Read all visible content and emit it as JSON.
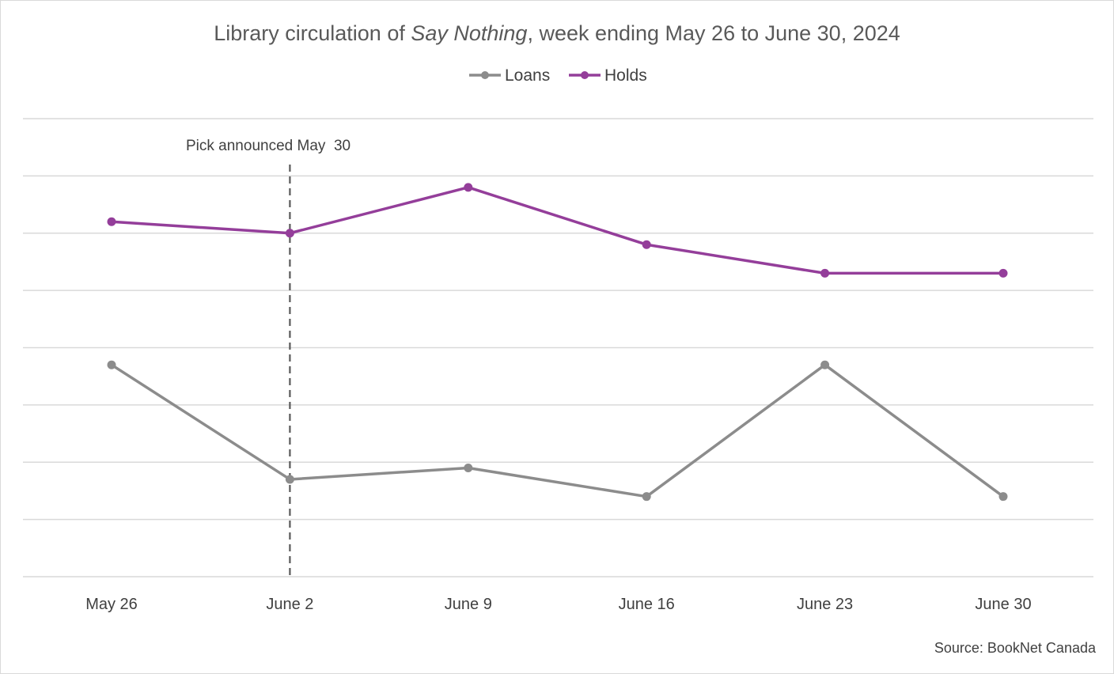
{
  "chart_data": {
    "type": "line",
    "title_parts": [
      "Library circulation of ",
      "Say Nothing",
      ", week ending May 26 to June 30, 2024"
    ],
    "categories": [
      "May 26",
      "June 2",
      "June 9",
      "June 16",
      "June 23",
      "June 30"
    ],
    "series": [
      {
        "name": "Loans",
        "color": "#8c8c8c",
        "values": [
          3.7,
          1.7,
          1.9,
          1.4,
          3.7,
          1.4
        ]
      },
      {
        "name": "Holds",
        "color": "#943e9a",
        "values": [
          6.2,
          6.0,
          6.8,
          5.8,
          5.3,
          5.3
        ]
      }
    ],
    "ylim": [
      0,
      8
    ],
    "y_gridlines": [
      0,
      1,
      2,
      3,
      4,
      5,
      6,
      7,
      8
    ],
    "y_axis_labels_shown": false,
    "legend_position": "top-center",
    "annotation": {
      "text": "Pick announced May  30",
      "category_index": 1,
      "style": "dashed-vertical",
      "color": "#595959"
    },
    "source": "Source: BookNet Canada"
  }
}
